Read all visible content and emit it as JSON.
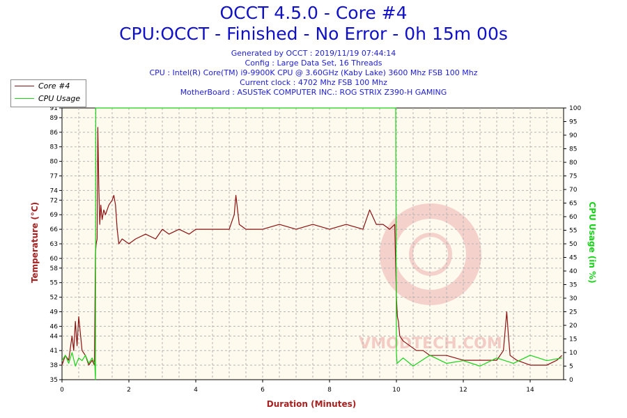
{
  "header": {
    "title": "OCCT 4.5.0 - Core #4",
    "subtitle": "CPU:OCCT - Finished - No Error - 0h 15m 00s",
    "info_lines": [
      "Generated by OCCT : 2019/11/19 07:44:14",
      "Config : Large Data Set, 16 Threads",
      "CPU : Intel(R) Core(TM) i9-9900K CPU @ 3.60GHz (Kaby Lake) 3600 Mhz FSB 100 Mhz",
      "Current clock : 4702 Mhz FSB 100 Mhz",
      "MotherBoard : ASUSTeK COMPUTER INC.: ROG STRIX Z390-H GAMING"
    ]
  },
  "colors": {
    "temperature": "#8b1010",
    "cpu_usage": "#16d416",
    "plot_bg": "#fffaee",
    "grid": "#b4b4b4",
    "title": "#1010c8",
    "axis_label_left": "#a82020",
    "axis_label_right": "#16d416",
    "axis_label_bottom": "#a82020",
    "watermark": "#e8a0a0"
  },
  "watermark_text": "VMODTECH.COM",
  "chart_data": {
    "type": "line",
    "title": "OCCT 4.5.0 - Core #4",
    "xlabel": "Duration (Minutes)",
    "ylabel": "Temperature (°C)",
    "y2label": "CPU Usage (in %)",
    "xlim": [
      0,
      15
    ],
    "ylim": [
      35,
      91
    ],
    "y2lim": [
      0,
      100
    ],
    "x_ticks": [
      0,
      2,
      4,
      6,
      8,
      10,
      12,
      14
    ],
    "y_ticks": [
      35,
      38,
      41,
      44,
      46,
      49,
      52,
      55,
      58,
      60,
      63,
      66,
      69,
      72,
      74,
      77,
      80,
      83,
      86,
      89,
      91
    ],
    "y2_ticks": [
      0,
      5,
      10,
      15,
      20,
      25,
      30,
      35,
      40,
      45,
      50,
      55,
      60,
      65,
      70,
      75,
      80,
      85,
      90,
      95,
      100
    ],
    "grid": true,
    "legend_position": "top-left",
    "series": [
      {
        "name": "Core #4",
        "axis": "left",
        "x": [
          0,
          0.1,
          0.2,
          0.3,
          0.35,
          0.4,
          0.45,
          0.5,
          0.6,
          0.7,
          0.8,
          0.9,
          0.97,
          1.0,
          1.02,
          1.05,
          1.07,
          1.1,
          1.13,
          1.16,
          1.2,
          1.25,
          1.3,
          1.4,
          1.5,
          1.55,
          1.6,
          1.65,
          1.7,
          1.8,
          2.0,
          2.2,
          2.5,
          2.8,
          3.0,
          3.2,
          3.5,
          3.8,
          4.0,
          4.3,
          4.6,
          5.0,
          5.15,
          5.2,
          5.3,
          5.5,
          6.0,
          6.5,
          7.0,
          7.5,
          8.0,
          8.5,
          9.0,
          9.2,
          9.4,
          9.6,
          9.8,
          9.95,
          10.0,
          10.03,
          10.06,
          10.1,
          10.2,
          10.4,
          10.6,
          10.8,
          11.0,
          11.5,
          12.0,
          12.5,
          13.0,
          13.2,
          13.3,
          13.35,
          13.4,
          13.6,
          14.0,
          14.5,
          14.8,
          14.95
        ],
        "y": [
          38,
          40,
          39,
          44,
          41,
          47,
          42,
          48,
          41,
          40,
          38,
          39,
          38,
          61,
          63,
          64,
          87,
          75,
          67,
          71,
          68,
          70,
          69,
          71,
          72,
          73,
          71,
          66,
          63,
          64,
          63,
          64,
          65,
          64,
          66,
          65,
          66,
          65,
          66,
          66,
          66,
          66,
          69,
          73,
          67,
          66,
          66,
          67,
          66,
          67,
          66,
          67,
          66,
          70,
          67,
          67,
          66,
          67,
          52,
          48,
          47,
          44,
          43,
          42,
          41,
          41,
          40,
          40,
          39,
          39,
          39,
          41,
          49,
          44,
          40,
          39,
          38,
          38,
          39,
          40
        ]
      },
      {
        "name": "CPU Usage",
        "axis": "right",
        "x": [
          0,
          0.1,
          0.2,
          0.3,
          0.4,
          0.5,
          0.6,
          0.7,
          0.8,
          0.9,
          0.98,
          1.0,
          1.01,
          9.98,
          10.0,
          10.02,
          10.2,
          10.5,
          11.0,
          11.5,
          12.0,
          12.5,
          13.0,
          13.5,
          14.0,
          14.5,
          14.95
        ],
        "y": [
          7,
          9,
          6,
          10,
          5,
          8,
          7,
          9,
          6,
          8,
          6,
          0,
          100,
          100,
          10,
          6,
          8,
          5,
          9,
          6,
          7,
          5,
          8,
          6,
          9,
          7,
          8
        ]
      }
    ]
  }
}
